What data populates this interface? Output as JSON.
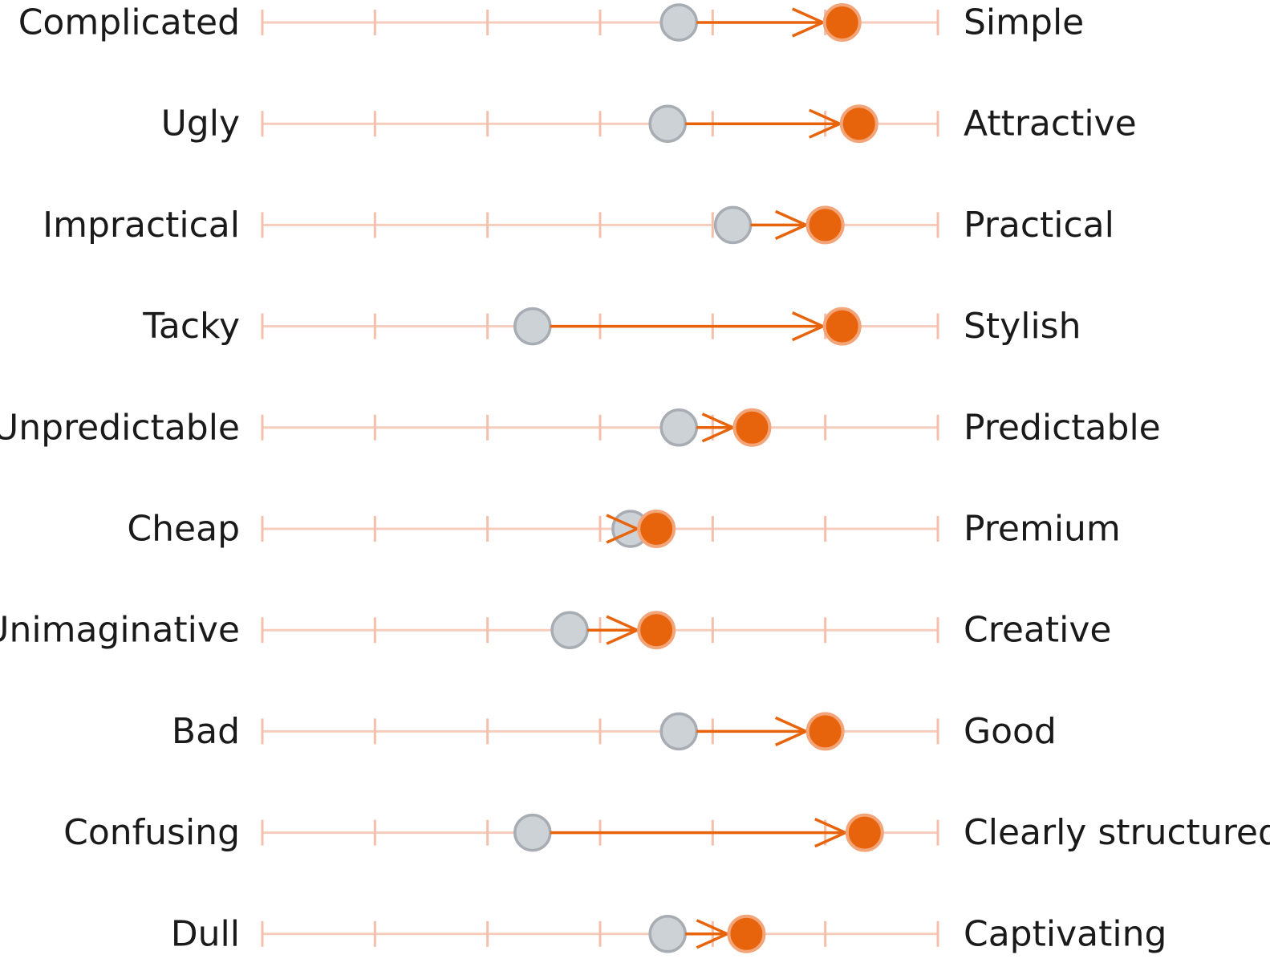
{
  "chart_data": {
    "type": "scatter",
    "subtype": "semantic-differential-arrow",
    "title": "",
    "xlabel": "",
    "ylabel": "",
    "scale": {
      "min": 1,
      "max": 7,
      "ticks": [
        1,
        2,
        3,
        4,
        5,
        6,
        7
      ]
    },
    "grid": false,
    "legend": "none",
    "colors": {
      "before": "#cdd2d7",
      "before_stroke": "#a7adb3",
      "after": "#e8640c",
      "after_stroke": "#f3a57a",
      "arrow": "#e8640c",
      "track": "#f6cdbd",
      "tick": "#f4c0ab"
    },
    "items": [
      {
        "left": "Complicated",
        "right": "Simple",
        "before": 4.7,
        "after": 6.15
      },
      {
        "left": "Ugly",
        "right": "Attractive",
        "before": 4.6,
        "after": 6.3
      },
      {
        "left": "Impractical",
        "right": "Practical",
        "before": 5.18,
        "after": 6.0
      },
      {
        "left": "Tacky",
        "right": "Stylish",
        "before": 3.4,
        "after": 6.15
      },
      {
        "left": "Unpredictable",
        "right": "Predictable",
        "before": 4.7,
        "after": 5.35
      },
      {
        "left": "Cheap",
        "right": "Premium",
        "before": 4.27,
        "after": 4.5
      },
      {
        "left": "Unimaginative",
        "right": "Creative",
        "before": 3.73,
        "after": 4.5
      },
      {
        "left": "Bad",
        "right": "Good",
        "before": 4.7,
        "after": 6.0
      },
      {
        "left": "Confusing",
        "right": "Clearly structured",
        "before": 3.4,
        "after": 6.35
      },
      {
        "left": "Dull",
        "right": "Captivating",
        "before": 4.6,
        "after": 5.3
      }
    ]
  }
}
